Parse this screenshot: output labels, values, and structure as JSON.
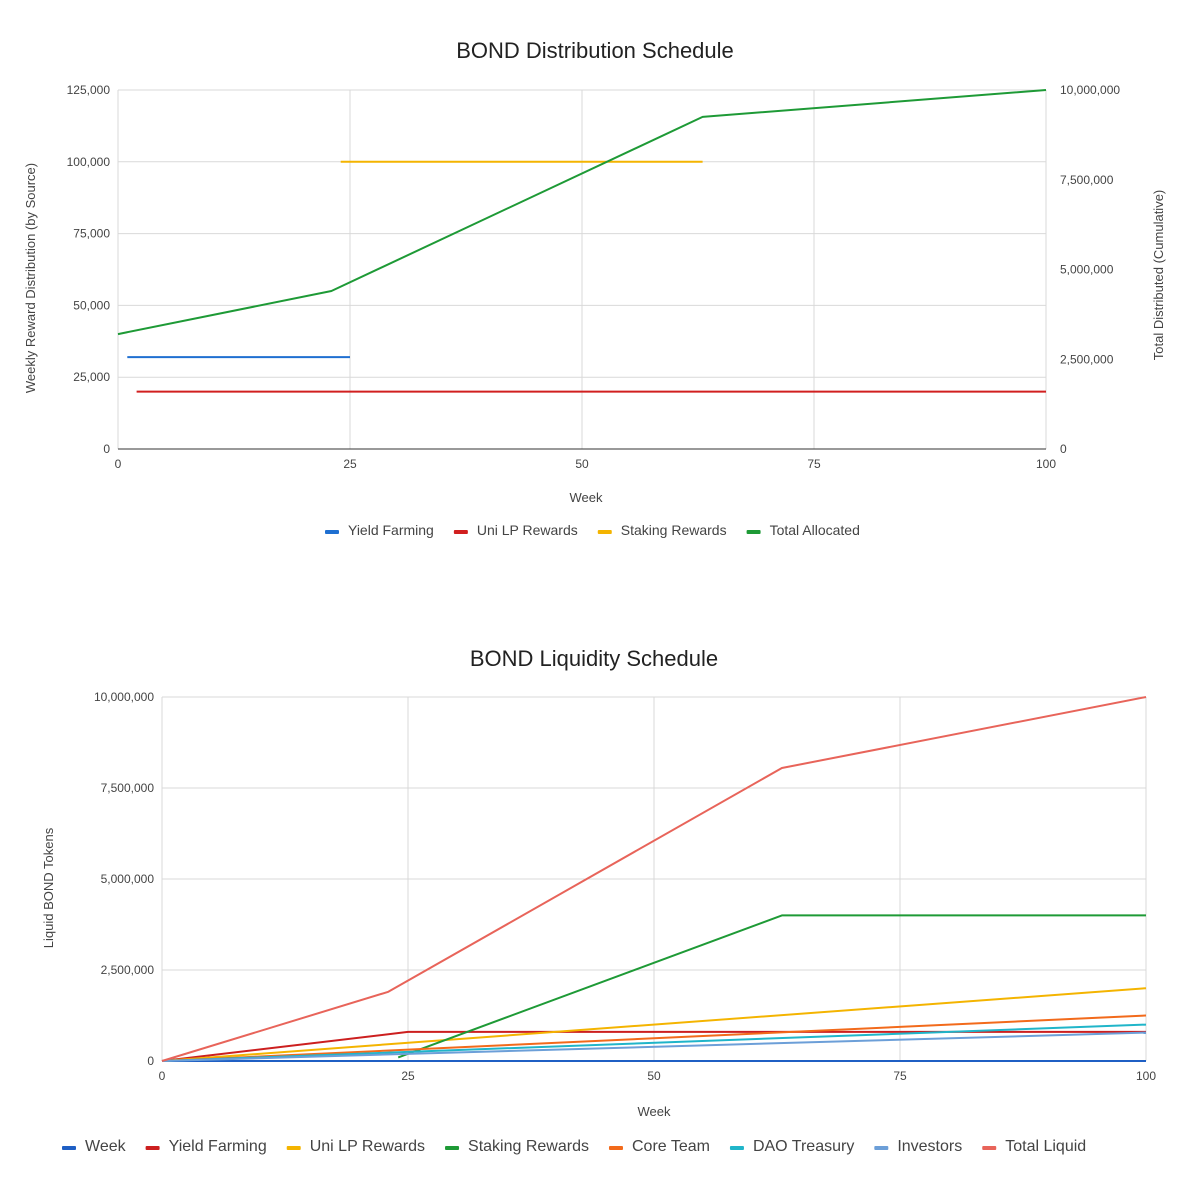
{
  "chart_data": [
    {
      "type": "line",
      "title": "BOND Distribution Schedule",
      "xlabel": "Week",
      "ylabel": "Weekly Reward Distribution (by Source)",
      "y2label": "Total Distributed (Cumulative)",
      "xlim": [
        0,
        100
      ],
      "ylim": [
        0,
        125000
      ],
      "y2lim": [
        0,
        10000000
      ],
      "x_ticks": [
        "0",
        "25",
        "50",
        "75",
        "100"
      ],
      "y_ticks": [
        "0",
        "25,000",
        "50,000",
        "75,000",
        "100,000",
        "125,000"
      ],
      "y2_ticks": [
        "0",
        "2,500,000",
        "5,000,000",
        "7,500,000",
        "10,000,000"
      ],
      "grid": true,
      "legend_position": "bottom",
      "series": [
        {
          "name": "Yield Farming",
          "color": "#1f6fd1",
          "axis": "left",
          "x": [
            1,
            25
          ],
          "values": [
            32000,
            32000
          ]
        },
        {
          "name": "Uni LP Rewards",
          "color": "#d11f1f",
          "axis": "left",
          "x": [
            2,
            100
          ],
          "values": [
            20000,
            20000
          ]
        },
        {
          "name": "Staking Rewards",
          "color": "#f4b400",
          "axis": "left",
          "x": [
            24,
            63
          ],
          "values": [
            100000,
            100000
          ]
        },
        {
          "name": "Total Allocated",
          "color": "#1e9a36",
          "axis": "right",
          "x": [
            0,
            23,
            63,
            100
          ],
          "values": [
            3200000,
            4400000,
            9250000,
            10000000
          ]
        }
      ]
    },
    {
      "type": "line",
      "title": "BOND Liquidity Schedule",
      "xlabel": "Week",
      "ylabel": "Liquid BOND Tokens",
      "xlim": [
        0,
        100
      ],
      "ylim": [
        0,
        10000000
      ],
      "x_ticks": [
        "0",
        "25",
        "50",
        "75",
        "100"
      ],
      "y_ticks": [
        "0",
        "2,500,000",
        "5,000,000",
        "7,500,000",
        "10,000,000"
      ],
      "grid": true,
      "legend_position": "bottom",
      "series": [
        {
          "name": "Week",
          "color": "#1f5fc4",
          "x": [
            0,
            100
          ],
          "values": [
            0,
            0
          ]
        },
        {
          "name": "Yield Farming",
          "color": "#cc1f1f",
          "x": [
            0,
            25,
            100
          ],
          "values": [
            0,
            800000,
            800000
          ]
        },
        {
          "name": "Uni LP Rewards",
          "color": "#f4b400",
          "x": [
            0,
            100
          ],
          "values": [
            0,
            2000000
          ]
        },
        {
          "name": "Staking Rewards",
          "color": "#1e9a36",
          "x": [
            24,
            63,
            100
          ],
          "values": [
            100000,
            4000000,
            4000000
          ]
        },
        {
          "name": "Core Team",
          "color": "#f26a1b",
          "x": [
            0,
            100
          ],
          "values": [
            0,
            1250000
          ]
        },
        {
          "name": "DAO Treasury",
          "color": "#20b5c9",
          "x": [
            0,
            100
          ],
          "values": [
            0,
            1000000
          ]
        },
        {
          "name": "Investors",
          "color": "#6c9fd8",
          "x": [
            0,
            100
          ],
          "values": [
            0,
            780000
          ]
        },
        {
          "name": "Total Liquid",
          "color": "#e8645a",
          "x": [
            0,
            23,
            63,
            100
          ],
          "values": [
            0,
            1900000,
            8050000,
            10000000
          ]
        }
      ]
    }
  ]
}
